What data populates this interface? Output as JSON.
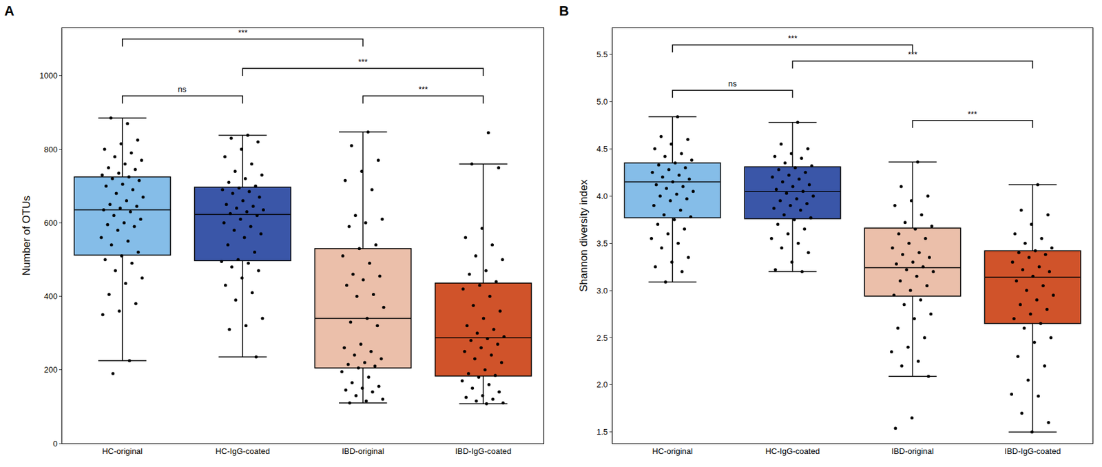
{
  "chart_data": [
    {
      "type": "box",
      "panel": "A",
      "ylabel": "Number of OTUs",
      "grid": false,
      "ylim": [
        0,
        1130
      ],
      "yticks": [
        0,
        200,
        400,
        600,
        800,
        1000
      ],
      "categories": [
        "HC-original",
        "HC-IgG-coated",
        "IBD-original",
        "IBD-IgG-coated"
      ],
      "boxes": [
        {
          "category": "HC-original",
          "color": "#85bde8",
          "whisker_low": 225,
          "q1": 512,
          "median": 635,
          "q3": 725,
          "whisker_high": 885,
          "points": [
            870,
            885,
            825,
            815,
            800,
            790,
            780,
            770,
            760,
            750,
            745,
            735,
            730,
            725,
            720,
            715,
            705,
            700,
            690,
            680,
            670,
            660,
            650,
            645,
            640,
            635,
            630,
            620,
            610,
            600,
            595,
            590,
            580,
            560,
            550,
            540,
            520,
            510,
            500,
            490,
            470,
            450,
            435,
            405,
            380,
            360,
            350,
            225,
            190
          ]
        },
        {
          "category": "HC-IgG-coated",
          "color": "#3a56a8",
          "whisker_low": 235,
          "q1": 497,
          "median": 623,
          "q3": 697,
          "whisker_high": 838,
          "points": [
            838,
            830,
            820,
            800,
            780,
            760,
            740,
            730,
            720,
            710,
            700,
            695,
            690,
            685,
            680,
            670,
            660,
            650,
            645,
            640,
            635,
            630,
            625,
            620,
            610,
            600,
            590,
            580,
            570,
            560,
            540,
            520,
            500,
            495,
            490,
            480,
            470,
            450,
            430,
            410,
            390,
            340,
            320,
            310,
            235
          ]
        },
        {
          "category": "IBD-original",
          "color": "#ebbfaa",
          "whisker_low": 110,
          "q1": 205,
          "median": 340,
          "q3": 530,
          "whisker_high": 847,
          "points": [
            847,
            810,
            770,
            740,
            715,
            690,
            620,
            610,
            600,
            590,
            540,
            530,
            510,
            490,
            460,
            455,
            445,
            430,
            405,
            400,
            370,
            340,
            330,
            320,
            270,
            260,
            250,
            240,
            230,
            220,
            215,
            210,
            205,
            195,
            180,
            165,
            155,
            150,
            145,
            140,
            130,
            120,
            115,
            110
          ]
        },
        {
          "category": "IBD-IgG-coated",
          "color": "#d0532a",
          "whisker_low": 108,
          "q1": 183,
          "median": 287,
          "q3": 436,
          "whisker_high": 760,
          "points": [
            845,
            760,
            750,
            585,
            560,
            540,
            510,
            500,
            470,
            460,
            440,
            430,
            420,
            400,
            375,
            360,
            340,
            320,
            310,
            300,
            290,
            285,
            280,
            270,
            260,
            250,
            240,
            230,
            220,
            200,
            190,
            185,
            180,
            170,
            160,
            150,
            140,
            130,
            125,
            120,
            115,
            110,
            108
          ]
        }
      ],
      "comparisons": [
        {
          "groups": [
            0,
            2
          ],
          "y": 1100,
          "label": "***"
        },
        {
          "groups": [
            1,
            3
          ],
          "y": 1020,
          "label": "***"
        },
        {
          "groups": [
            0,
            1
          ],
          "y": 945,
          "label": "ns"
        },
        {
          "groups": [
            2,
            3
          ],
          "y": 945,
          "label": "***"
        }
      ]
    },
    {
      "type": "box",
      "panel": "B",
      "ylabel": "Shannon diversity index",
      "grid": false,
      "ylim": [
        1.38,
        5.78
      ],
      "yticks": [
        1.5,
        {
          "value": 2,
          "label": "2.0"
        },
        2.5,
        {
          "value": 3,
          "label": "3.0"
        },
        3.5,
        {
          "value": 4,
          "label": "4.0"
        },
        4.5,
        {
          "value": 5,
          "label": "5.0"
        },
        5.5
      ],
      "categories": [
        "HC-original",
        "HC-IgG-coated",
        "IBD-original",
        "IBD-IgG-coated"
      ],
      "boxes": [
        {
          "category": "HC-original",
          "color": "#85bde8",
          "whisker_low": 3.09,
          "q1": 3.77,
          "median": 4.15,
          "q3": 4.35,
          "whisker_high": 4.84,
          "points": [
            4.84,
            4.63,
            4.6,
            4.55,
            4.5,
            4.45,
            4.42,
            4.38,
            4.35,
            4.33,
            4.3,
            4.28,
            4.25,
            4.22,
            4.2,
            4.18,
            4.15,
            4.12,
            4.1,
            4.08,
            4.05,
            4.02,
            4.0,
            3.97,
            3.95,
            3.9,
            3.85,
            3.8,
            3.78,
            3.75,
            3.7,
            3.65,
            3.6,
            3.55,
            3.5,
            3.45,
            3.35,
            3.3,
            3.25,
            3.2,
            3.09
          ]
        },
        {
          "category": "HC-IgG-coated",
          "color": "#3a56a8",
          "whisker_low": 3.2,
          "q1": 3.76,
          "median": 4.05,
          "q3": 4.31,
          "whisker_high": 4.78,
          "points": [
            4.78,
            4.55,
            4.5,
            4.45,
            4.42,
            4.4,
            4.35,
            4.32,
            4.3,
            4.28,
            4.25,
            4.22,
            4.2,
            4.18,
            4.15,
            4.12,
            4.1,
            4.07,
            4.05,
            4.03,
            4.0,
            3.97,
            3.95,
            3.92,
            3.9,
            3.87,
            3.85,
            3.8,
            3.77,
            3.75,
            3.7,
            3.65,
            3.6,
            3.55,
            3.5,
            3.45,
            3.4,
            3.3,
            3.22,
            3.2
          ]
        },
        {
          "category": "IBD-original",
          "color": "#ebbfaa",
          "whisker_low": 2.09,
          "q1": 2.94,
          "median": 3.24,
          "q3": 3.66,
          "whisker_high": 4.36,
          "points": [
            4.36,
            4.1,
            4.0,
            3.95,
            3.9,
            3.8,
            3.72,
            3.68,
            3.65,
            3.6,
            3.55,
            3.5,
            3.45,
            3.4,
            3.38,
            3.35,
            3.3,
            3.28,
            3.25,
            3.22,
            3.2,
            3.15,
            3.1,
            3.05,
            3.0,
            2.95,
            2.9,
            2.85,
            2.75,
            2.7,
            2.6,
            2.5,
            2.4,
            2.35,
            2.25,
            2.2,
            2.09,
            1.65,
            1.54
          ]
        },
        {
          "category": "IBD-IgG-coated",
          "color": "#d0532a",
          "whisker_low": 1.5,
          "q1": 2.65,
          "median": 3.14,
          "q3": 3.42,
          "whisker_high": 4.12,
          "points": [
            4.12,
            3.85,
            3.8,
            3.7,
            3.6,
            3.55,
            3.5,
            3.45,
            3.42,
            3.4,
            3.38,
            3.35,
            3.3,
            3.25,
            3.22,
            3.2,
            3.15,
            3.1,
            3.05,
            3.0,
            2.95,
            2.9,
            2.85,
            2.8,
            2.75,
            2.7,
            2.65,
            2.6,
            2.5,
            2.45,
            2.3,
            2.2,
            2.05,
            1.9,
            1.88,
            1.7,
            1.6,
            1.5
          ]
        }
      ],
      "comparisons": [
        {
          "groups": [
            0,
            2
          ],
          "y": 5.6,
          "label": "***"
        },
        {
          "groups": [
            1,
            3
          ],
          "y": 5.43,
          "label": "***"
        },
        {
          "groups": [
            0,
            1
          ],
          "y": 5.12,
          "label": "ns"
        },
        {
          "groups": [
            2,
            3
          ],
          "y": 4.8,
          "label": "***"
        }
      ]
    }
  ]
}
